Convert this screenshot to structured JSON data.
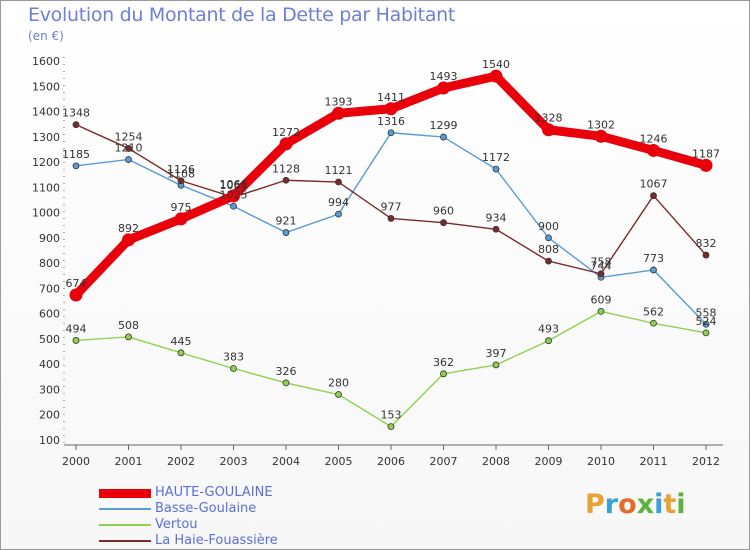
{
  "header": {
    "title": "Evolution du Montant de la Dette par Habitant",
    "subtitle": "(en €)"
  },
  "logo": {
    "letters": [
      "P",
      "r",
      "o",
      "x",
      "i",
      "t",
      "i"
    ],
    "colors": [
      "#e8a236",
      "#3aa0d8",
      "#e06d2c",
      "#5bb33d",
      "#3aa0d8",
      "#e8a236",
      "#5bb33d"
    ]
  },
  "chart_data": {
    "type": "line",
    "title": "Evolution du Montant de la Dette par Habitant",
    "ylabel": "(en €)",
    "categories": [
      "2000",
      "2001",
      "2002",
      "2003",
      "2004",
      "2005",
      "2006",
      "2007",
      "2008",
      "2009",
      "2010",
      "2011",
      "2012"
    ],
    "ylim": [
      100,
      1600
    ],
    "yticks": [
      "100",
      "200",
      "300",
      "400",
      "500",
      "600",
      "700",
      "800",
      "900",
      "1000",
      "1100",
      "1200",
      "1300",
      "1400",
      "1500",
      "1600"
    ],
    "grid": false,
    "series": [
      {
        "name": "HAUTE-GOULAINE",
        "color": "#e8000b",
        "thick": true,
        "values": [
          674,
          892,
          975,
          1066,
          1272,
          1393,
          1411,
          1493,
          1540,
          1328,
          1302,
          1246,
          1187
        ]
      },
      {
        "name": "Basse-Goulaine",
        "color": "#5a9bd5",
        "thick": false,
        "values": [
          1185,
          1210,
          1108,
          1025,
          921,
          994,
          1316,
          1299,
          1172,
          900,
          744,
          773,
          558
        ]
      },
      {
        "name": "Vertou",
        "color": "#8fd14f",
        "thick": false,
        "values": [
          494,
          508,
          445,
          383,
          326,
          280,
          153,
          362,
          397,
          493,
          609,
          562,
          524
        ]
      },
      {
        "name": "La Haie-Fouassière",
        "color": "#7b2a2a",
        "thick": false,
        "values": [
          1348,
          1254,
          1126,
          1061,
          1128,
          1121,
          977,
          960,
          934,
          808,
          758,
          1067,
          832
        ]
      }
    ]
  }
}
